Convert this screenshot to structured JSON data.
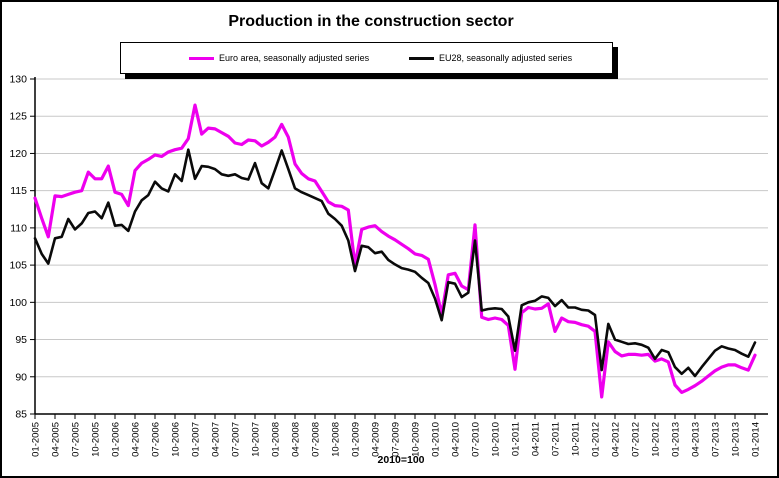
{
  "chart_data": {
    "type": "line",
    "title": "Production in the construction sector",
    "footnote": "2010=100",
    "grid": true,
    "legend_position": "top",
    "ylim": [
      85,
      130
    ],
    "ytick_step": 5,
    "axis_color": "#000000",
    "grid_color": "#c8c8c8",
    "x_tick_labels": [
      "01-2005",
      "04-2005",
      "07-2005",
      "10-2005",
      "01-2006",
      "04-2006",
      "07-2006",
      "10-2006",
      "01-2007",
      "04-2007",
      "07-2007",
      "10-2007",
      "01-2008",
      "04-2008",
      "07-2008",
      "10-2008",
      "01-2009",
      "04-2009",
      "07-2009",
      "10-2009",
      "01-2010",
      "04-2010",
      "07-2010",
      "10-2010",
      "01-2011",
      "04-2011",
      "07-2011",
      "10-2011",
      "01-2012",
      "04-2012",
      "07-2012",
      "10-2012",
      "01-2013",
      "04-2013",
      "07-2013",
      "10-2013",
      "01-2014"
    ],
    "months_per_tick": 3,
    "series": [
      {
        "name": "Euro area, seasonally adjusted series",
        "color": "#ee00ee",
        "stroke_width": 3.2,
        "values": [
          114.0,
          111.3,
          108.8,
          114.3,
          114.2,
          114.5,
          114.8,
          115.0,
          117.5,
          116.6,
          116.6,
          118.3,
          114.8,
          114.5,
          113.0,
          117.7,
          118.7,
          119.2,
          119.8,
          119.6,
          120.2,
          120.5,
          120.7,
          122.0,
          126.5,
          122.6,
          123.4,
          123.3,
          122.8,
          122.3,
          121.4,
          121.2,
          121.8,
          121.7,
          121.0,
          121.5,
          122.2,
          123.9,
          122.2,
          118.6,
          117.3,
          116.6,
          116.3,
          114.9,
          113.5,
          113.0,
          112.9,
          112.4,
          105.0,
          109.8,
          110.1,
          110.3,
          109.5,
          108.9,
          108.4,
          107.8,
          107.2,
          106.5,
          106.3,
          105.8,
          102.4,
          98.4,
          103.7,
          103.9,
          102.2,
          101.7,
          110.4,
          98.0,
          97.7,
          97.9,
          97.7,
          96.9,
          91.0,
          98.6,
          99.3,
          99.1,
          99.2,
          99.8,
          96.1,
          97.9,
          97.4,
          97.3,
          97.0,
          96.8,
          96.1,
          87.3,
          94.7,
          93.4,
          92.8,
          93.0,
          93.0,
          92.9,
          93.0,
          92.1,
          92.4,
          92.0,
          88.9,
          87.9,
          88.3,
          88.8,
          89.4,
          90.1,
          90.8,
          91.3,
          91.6,
          91.6,
          91.2,
          90.9,
          92.9
        ]
      },
      {
        "name": "EU28, seasonally adjusted series",
        "color": "#0a0a0a",
        "stroke_width": 2.6,
        "values": [
          108.6,
          106.5,
          105.2,
          108.6,
          108.8,
          111.2,
          109.8,
          110.6,
          112.0,
          112.2,
          111.3,
          113.4,
          110.3,
          110.4,
          109.6,
          112.2,
          113.7,
          114.4,
          116.2,
          115.3,
          114.9,
          117.2,
          116.3,
          120.5,
          116.6,
          118.3,
          118.2,
          117.9,
          117.2,
          117.0,
          117.2,
          116.7,
          116.5,
          118.7,
          116.0,
          115.3,
          117.8,
          120.4,
          117.9,
          115.3,
          114.8,
          114.4,
          114.0,
          113.6,
          111.9,
          111.2,
          110.3,
          108.3,
          104.2,
          107.6,
          107.4,
          106.6,
          106.8,
          105.7,
          105.1,
          104.6,
          104.4,
          104.1,
          103.3,
          102.6,
          100.5,
          97.6,
          102.7,
          102.5,
          100.7,
          101.3,
          108.3,
          98.9,
          99.1,
          99.2,
          99.1,
          98.1,
          93.5,
          99.6,
          100.0,
          100.2,
          100.8,
          100.6,
          99.5,
          100.3,
          99.3,
          99.3,
          99.0,
          98.9,
          98.3,
          90.9,
          97.1,
          95.0,
          94.7,
          94.4,
          94.5,
          94.3,
          93.9,
          92.4,
          93.6,
          93.3,
          91.3,
          90.4,
          91.2,
          90.1,
          91.3,
          92.4,
          93.5,
          94.1,
          93.8,
          93.6,
          93.1,
          92.7,
          94.6
        ]
      }
    ]
  }
}
